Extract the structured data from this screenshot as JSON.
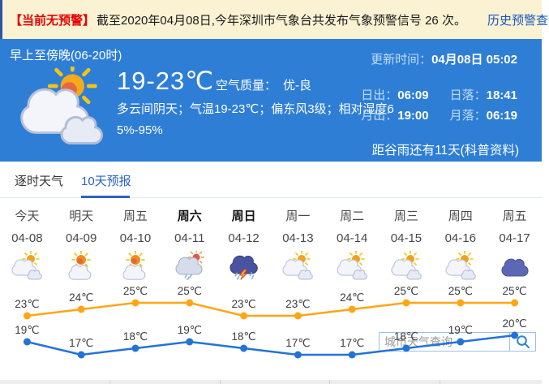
{
  "banner": {
    "alert_label": "【当前无预警】",
    "alert_text": "截至2020年04月08日,今年深圳市气象台共发布气象预警信号 26 次。",
    "history_link": "历史预警查询"
  },
  "current": {
    "period": "早上至傍晚(06-20时)",
    "icon": "partly-cloudy-large",
    "temp_range": "19-23℃",
    "air_quality_label": "空气质量：",
    "air_quality_value": "优-良",
    "description": "多云间阴天；气温19-23℃；偏东风3级；相对湿度65%-95%",
    "update_label": "更新时间：",
    "update_value": "04月08日 05:02",
    "sunrise_label": "日出：",
    "sunrise": "06:09",
    "sunset_label": "日落：",
    "sunset": "18:41",
    "moonrise_label": "月出：",
    "moonrise": "19:00",
    "moonset_label": "月落：",
    "moonset": "06:19",
    "solar_term_note": "距谷雨还有11天(科普资料)"
  },
  "tabs": [
    {
      "label": "逐时天气",
      "active": false
    },
    {
      "label": "10天预报",
      "active": true
    }
  ],
  "search": {
    "placeholder": "城市天气查询"
  },
  "forecast": {
    "days": [
      {
        "name": "今天",
        "date": "04-08",
        "icon": "partly-cloudy",
        "weekend": false
      },
      {
        "name": "明天",
        "date": "04-09",
        "icon": "mostly-sunny",
        "weekend": false
      },
      {
        "name": "周五",
        "date": "04-10",
        "icon": "mostly-sunny",
        "weekend": false
      },
      {
        "name": "周六",
        "date": "04-11",
        "icon": "light-rain",
        "weekend": true
      },
      {
        "name": "周日",
        "date": "04-12",
        "icon": "thunderstorm",
        "weekend": true
      },
      {
        "name": "周一",
        "date": "04-13",
        "icon": "partly-cloudy",
        "weekend": false
      },
      {
        "name": "周二",
        "date": "04-14",
        "icon": "partly-cloudy",
        "weekend": false
      },
      {
        "name": "周三",
        "date": "04-15",
        "icon": "partly-cloudy",
        "weekend": false
      },
      {
        "name": "周四",
        "date": "04-16",
        "icon": "partly-cloudy",
        "weekend": false
      },
      {
        "name": "周五",
        "date": "04-17",
        "icon": "overcast",
        "weekend": false
      }
    ]
  },
  "chart_data": {
    "type": "line",
    "x": [
      "04-08",
      "04-09",
      "04-10",
      "04-11",
      "04-12",
      "04-13",
      "04-14",
      "04-15",
      "04-16",
      "04-17"
    ],
    "series": [
      {
        "name": "daily-high",
        "color": "#ffa615",
        "values": [
          23,
          24,
          25,
          25,
          23,
          23,
          24,
          25,
          25,
          25
        ]
      },
      {
        "name": "daily-low",
        "color": "#2273d8",
        "values": [
          19,
          17,
          18,
          19,
          18,
          17,
          17,
          18,
          19,
          20
        ]
      }
    ],
    "unit": "℃",
    "point_labels": true,
    "grid": false,
    "legend": "none",
    "ylim": [
      16,
      27
    ]
  },
  "colors": {
    "banner_bg": "#fbf2d3",
    "alert_red": "#e50000",
    "link_blue": "#1857c2",
    "hero_blue": "#2e7ed6",
    "tab_active_blue": "#2a62c8",
    "high_line": "#ffa615",
    "low_line": "#2273d8"
  }
}
